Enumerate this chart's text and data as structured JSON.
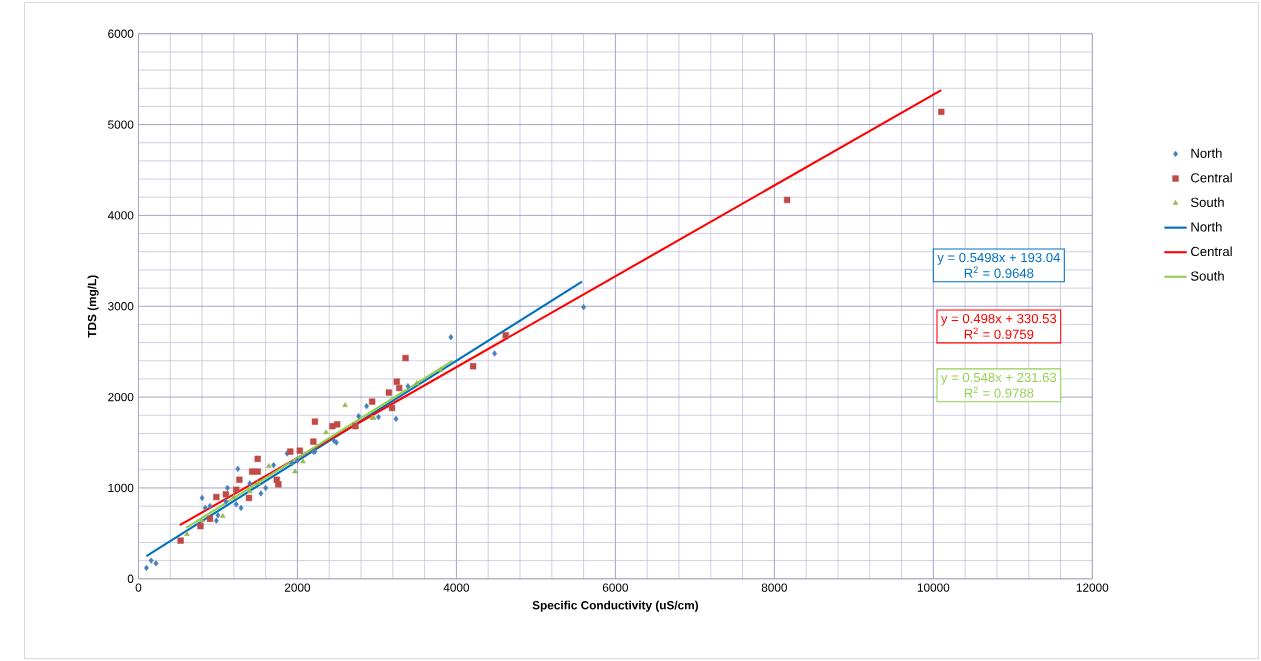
{
  "chart_data": {
    "type": "scatter",
    "xlabel": "Specific Conductivity (uS/cm)",
    "ylabel": "TDS (mg/L)",
    "xlim": [
      0,
      12000
    ],
    "ylim": [
      0,
      6000
    ],
    "xticks": [
      0,
      2000,
      4000,
      6000,
      8000,
      10000,
      12000
    ],
    "yticks": [
      0,
      1000,
      2000,
      3000,
      4000,
      5000,
      6000
    ],
    "grid": true,
    "legend": "right",
    "annotations": [
      "y = 0.5498x + 193.04",
      "R$^{2}$ = 0.9648",
      "y = 0.498x + 330.53",
      "R$^{2}$ = 0.9759",
      "y = 0.548x + 231.63",
      "R$^{2}$ = 0.9788"
    ],
    "series": [
      {
        "name": "North",
        "marker": "diamond",
        "color": "#4a7ebb",
        "x": [
          100,
          160,
          220,
          800,
          840,
          980,
          1120,
          1230,
          1290,
          1250,
          1540,
          1700,
          1870,
          1930,
          2220,
          2460,
          2770,
          2870,
          3930,
          4480,
          5600,
          3240,
          3020,
          3390,
          2490,
          900,
          1000,
          1100,
          1400,
          1600,
          2000,
          2200
        ],
        "values": [
          120,
          200,
          170,
          890,
          780,
          640,
          1000,
          820,
          780,
          1210,
          940,
          1250,
          1380,
          1270,
          1400,
          1520,
          1790,
          1900,
          2660,
          2480,
          2990,
          1760,
          1780,
          2120,
          1500,
          800,
          700,
          850,
          1050,
          1000,
          1300,
          1400
        ]
      },
      {
        "name": "Central",
        "marker": "square",
        "color": "#be4b48",
        "x": [
          530,
          780,
          980,
          1100,
          1270,
          1390,
          1430,
          1500,
          1500,
          1740,
          1760,
          1910,
          2030,
          2200,
          2220,
          2440,
          2500,
          2730,
          900,
          1230,
          3360,
          3250,
          3280,
          3150,
          3190,
          2940,
          4210,
          4620,
          8160,
          10100
        ],
        "values": [
          420,
          580,
          900,
          930,
          1090,
          890,
          1180,
          1320,
          1180,
          1090,
          1040,
          1400,
          1410,
          1510,
          1730,
          1680,
          1700,
          1680,
          660,
          980,
          2430,
          2170,
          2100,
          2050,
          1880,
          1950,
          2340,
          2680,
          4170,
          5140
        ]
      },
      {
        "name": "South",
        "marker": "triangle",
        "color": "#98b954",
        "x": [
          1060,
          610,
          1640,
          1970,
          2070,
          2360,
          2600,
          1400,
          2940,
          2960,
          800,
          1200,
          1500,
          3500,
          3800
        ],
        "values": [
          690,
          490,
          1240,
          1180,
          1290,
          1610,
          1910,
          960,
          1770,
          1770,
          640,
          900,
          1050,
          2150,
          2300
        ]
      },
      {
        "name": "North",
        "type": "line",
        "marker": "none",
        "color": "#0070c0",
        "x": [
          100,
          5580
        ],
        "values": [
          250,
          3270
        ]
      },
      {
        "name": "Central",
        "type": "line",
        "marker": "none",
        "color": "#ff0000",
        "x": [
          520,
          10100
        ],
        "values": [
          590,
          5380
        ]
      },
      {
        "name": "South",
        "type": "line",
        "marker": "none",
        "color": "#92d050",
        "x": [
          600,
          3950
        ],
        "values": [
          560,
          2400
        ]
      }
    ]
  }
}
